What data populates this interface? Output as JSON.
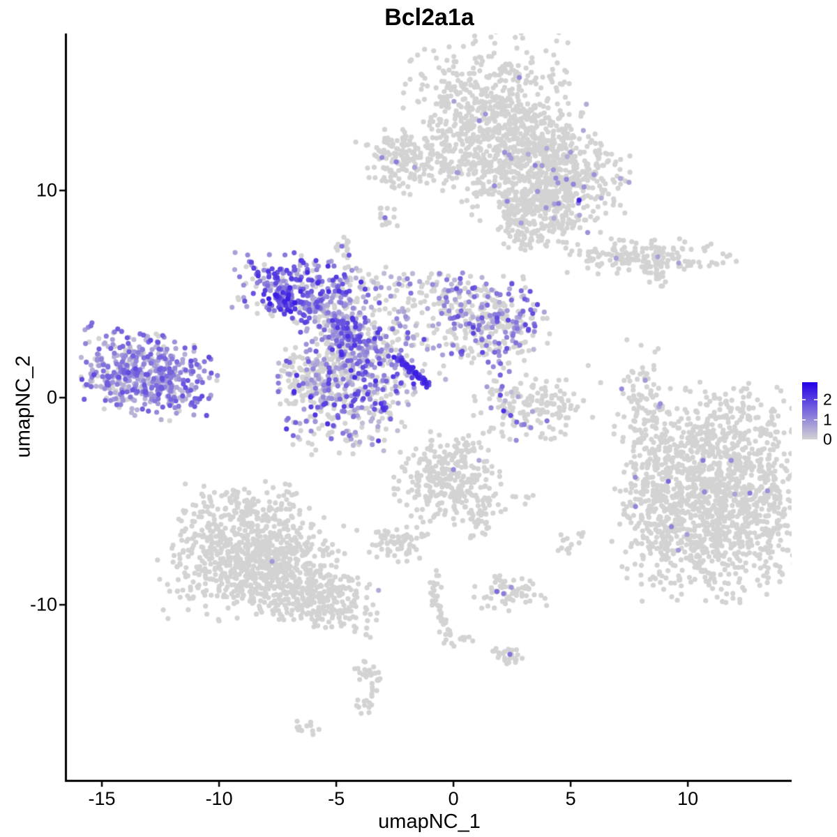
{
  "title": "Bcl2a1a",
  "chart_data": {
    "type": "scatter",
    "title": "Bcl2a1a",
    "xlabel": "umapNC_1",
    "ylabel": "umapNC_2",
    "xlim": [
      -16.49,
      14.43
    ],
    "ylim": [
      -18.45,
      17.58
    ],
    "x_ticks": [
      -15,
      -10,
      -5,
      0,
      5,
      10
    ],
    "y_ticks": [
      -10,
      0,
      10
    ],
    "grid": false,
    "legend_position": "right",
    "legend": {
      "ticks": [
        2,
        1,
        0
      ],
      "vmax": 2.9
    },
    "colors": {
      "low": "#D3D3D3",
      "high": "#2100E6",
      "axis": "#000000",
      "text": "#000000"
    },
    "point_radius": 3.6,
    "clusters": [
      {
        "name": "top-main-upper",
        "n": 620,
        "c": [
          1.5,
          13.6
        ],
        "s": [
          1.7,
          1.85
        ],
        "e": [
          0.006,
          0.6,
          1.1
        ]
      },
      {
        "name": "top-main-mid",
        "n": 380,
        "c": [
          3.0,
          11.4
        ],
        "s": [
          1.45,
          1.35
        ],
        "e": [
          0.015,
          0.5,
          1.0
        ]
      },
      {
        "name": "top-main-right",
        "n": 260,
        "c": [
          4.8,
          10.7
        ],
        "s": [
          1.25,
          1.05
        ],
        "e": [
          0.03,
          0.5,
          1.2
        ]
      },
      {
        "name": "top-main-lower",
        "n": 190,
        "c": [
          4.0,
          9.0
        ],
        "s": [
          1.1,
          0.9
        ],
        "e": [
          0.04,
          0.5,
          1.2
        ]
      },
      {
        "name": "top-tongue",
        "n": 85,
        "c": [
          2.9,
          8.5
        ],
        "s": [
          0.5,
          0.75
        ],
        "e": [
          0.01,
          0.5,
          1.0
        ]
      },
      {
        "name": "upper-left-island",
        "n": 135,
        "c": [
          -2.2,
          11.4
        ],
        "s": [
          1.0,
          0.72
        ],
        "e": [
          0.01,
          0.6,
          1.0
        ]
      },
      {
        "name": "upper-left-trail",
        "n": 38,
        "c": [
          -0.6,
          11.0
        ],
        "s": [
          0.85,
          0.32
        ],
        "e": [
          0.02,
          0.6,
          1.0
        ]
      },
      {
        "name": "tiny-blob-a",
        "n": 13,
        "c": [
          -2.9,
          8.72
        ],
        "s": [
          0.27,
          0.24
        ],
        "e": [
          0,
          0,
          0
        ]
      },
      {
        "name": "tiny-blob-b",
        "n": 13,
        "c": [
          -4.8,
          7.3
        ],
        "s": [
          0.3,
          0.26
        ],
        "e": [
          0,
          0,
          0
        ]
      },
      {
        "name": "bridge-topleft",
        "n": 230,
        "c": [
          -6.6,
          5.35
        ],
        "s": [
          1.3,
          0.8
        ],
        "e": [
          0.8,
          0.35,
          2.3
        ],
        "b": 1.2
      },
      {
        "name": "bridge-topleft-deep",
        "n": 55,
        "c": [
          -7.25,
          4.6
        ],
        "s": [
          0.5,
          0.42
        ],
        "e": [
          0.95,
          1.0,
          2.6
        ],
        "b": 0.9
      },
      {
        "name": "bridge-arm",
        "n": 140,
        "c": [
          -5.3,
          4.0
        ],
        "s": [
          0.72,
          0.78
        ],
        "e": [
          0.7,
          0.3,
          2.2
        ]
      },
      {
        "name": "bridge-mid",
        "n": 170,
        "c": [
          -4.4,
          2.6
        ],
        "s": [
          0.72,
          0.92
        ],
        "e": [
          0.6,
          0.25,
          2.2
        ]
      },
      {
        "name": "bridge-low",
        "n": 380,
        "c": [
          -4.5,
          0.1
        ],
        "s": [
          1.45,
          1.3
        ],
        "e": [
          0.55,
          0.25,
          2.3
        ]
      },
      {
        "name": "bridge-low-grey",
        "n": 125,
        "c": [
          -5.95,
          0.95
        ],
        "s": [
          0.75,
          0.7
        ],
        "e": [
          0.15,
          0.3,
          1.2
        ]
      },
      {
        "name": "bridge-scatter-right",
        "n": 130,
        "c": [
          -2.6,
          2.8
        ],
        "s": [
          1.25,
          1.05
        ],
        "e": [
          0.5,
          0.25,
          1.9
        ]
      },
      {
        "name": "bridge-upper-trail",
        "n": 85,
        "c": [
          -1.8,
          5.3
        ],
        "s": [
          1.45,
          0.5
        ],
        "e": [
          0.35,
          0.3,
          1.6
        ]
      },
      {
        "name": "bridge-spur",
        "n": 12,
        "c": [
          -4.3,
          5.9
        ],
        "s": [
          0.33,
          0.4
        ],
        "e": [
          0.3,
          0.4,
          1.2
        ]
      },
      {
        "name": "left-cluster",
        "n": 500,
        "c": [
          -13.15,
          1.1
        ],
        "s": [
          1.4,
          0.92
        ],
        "rot": -12,
        "e": [
          0.86,
          0.35,
          1.9
        ],
        "b": 1.5
      },
      {
        "name": "mid-right-cluster",
        "n": 320,
        "c": [
          1.6,
          3.8
        ],
        "s": [
          1.25,
          1.0
        ],
        "e": [
          0.38,
          0.35,
          2.0
        ]
      },
      {
        "name": "mid-right-drip",
        "n": 13,
        "c": [
          1.9,
          1.6
        ],
        "s": [
          0.38,
          0.95
        ],
        "e": [
          0.45,
          0.5,
          1.6
        ]
      },
      {
        "name": "smile-cluster",
        "n": 150,
        "c": [
          3.4,
          -0.45
        ],
        "s": [
          1.25,
          0.75
        ],
        "e": [
          0.1,
          0.3,
          1.0
        ]
      },
      {
        "name": "right-island",
        "n": 165,
        "c": [
          8.2,
          6.8
        ],
        "s": [
          1.8,
          0.4
        ],
        "e": [
          0,
          0,
          0
        ]
      },
      {
        "name": "right-island-diag",
        "n": 20,
        "c": [
          8.8,
          5.9
        ],
        "s": [
          0.42,
          0.27
        ],
        "rot": -40,
        "e": [
          0,
          0,
          0
        ]
      },
      {
        "name": "right-thin-cluster",
        "n": 72,
        "c": [
          8.1,
          -0.2
        ],
        "s": [
          0.4,
          1.45
        ],
        "e": [
          0.012,
          0.5,
          0.8
        ]
      },
      {
        "name": "bottom-right-main",
        "n": 1450,
        "c": [
          11.3,
          -4.6
        ],
        "s": [
          1.95,
          2.45
        ],
        "e": [
          0.003,
          0.5,
          1.1
        ]
      },
      {
        "name": "bottom-right-tail",
        "n": 165,
        "c": [
          8.6,
          -4.9
        ],
        "s": [
          0.85,
          2.1
        ],
        "e": [
          0.006,
          0.5,
          1.0
        ]
      },
      {
        "name": "bottom-left-top",
        "n": 400,
        "c": [
          -8.6,
          -6.4
        ],
        "s": [
          1.45,
          1.15
        ],
        "e": [
          0.001,
          0.4,
          0.8
        ]
      },
      {
        "name": "bottom-left-main",
        "n": 500,
        "c": [
          -8.4,
          -8.4
        ],
        "s": [
          1.95,
          1.1
        ],
        "e": [
          0.001,
          0.4,
          0.8
        ]
      },
      {
        "name": "bottom-left-tail",
        "n": 250,
        "c": [
          -5.9,
          -9.6
        ],
        "s": [
          1.35,
          0.7
        ],
        "rot": -20,
        "e": [
          0.001,
          0.4,
          0.8
        ]
      },
      {
        "name": "center-bottom",
        "n": 290,
        "c": [
          -0.2,
          -3.9
        ],
        "s": [
          1.15,
          1.05
        ],
        "e": [
          0.004,
          0.4,
          0.9
        ]
      },
      {
        "name": "center-bottom-tail",
        "n": 34,
        "c": [
          1.1,
          -5.8
        ],
        "s": [
          0.4,
          0.55
        ],
        "e": [
          0,
          0,
          0
        ]
      },
      {
        "name": "small-left-low",
        "n": 70,
        "c": [
          -2.4,
          -6.9
        ],
        "s": [
          0.62,
          0.48
        ],
        "e": [
          0,
          0,
          0
        ]
      },
      {
        "name": "pair-dots",
        "n": 6,
        "c": [
          3.0,
          -4.88
        ],
        "s": [
          0.22,
          0.13
        ],
        "e": [
          0,
          0,
          0
        ]
      },
      {
        "name": "tiny-right-low",
        "n": 15,
        "c": [
          5.05,
          -7.1
        ],
        "s": [
          0.38,
          0.27
        ],
        "e": [
          0,
          0,
          0
        ]
      },
      {
        "name": "lower-mid-cluster",
        "n": 60,
        "c": [
          2.5,
          -9.3
        ],
        "s": [
          0.75,
          0.45
        ],
        "e": [
          0,
          0,
          0
        ]
      },
      {
        "name": "strand-blob",
        "n": 13,
        "c": [
          -0.95,
          -9.2
        ],
        "s": [
          0.2,
          0.42
        ],
        "e": [
          0,
          0,
          0
        ]
      },
      {
        "name": "strand-dots",
        "n": 8,
        "c": [
          0.5,
          -11.7
        ],
        "s": [
          0.33,
          0.14
        ],
        "e": [
          0,
          0,
          0
        ]
      },
      {
        "name": "lower-small-cluster",
        "n": 26,
        "c": [
          2.3,
          -12.4
        ],
        "s": [
          0.38,
          0.23
        ],
        "e": [
          0,
          0,
          0
        ]
      },
      {
        "name": "bottom-center-a",
        "n": 24,
        "c": [
          -3.55,
          -13.4
        ],
        "s": [
          0.42,
          0.38
        ],
        "e": [
          0,
          0,
          0
        ]
      },
      {
        "name": "bottom-center-b",
        "n": 15,
        "c": [
          -3.7,
          -14.7
        ],
        "s": [
          0.33,
          0.28
        ],
        "e": [
          0,
          0,
          0
        ]
      },
      {
        "name": "bottom-dots",
        "n": 11,
        "c": [
          -6.35,
          -15.9
        ],
        "s": [
          0.33,
          0.18
        ],
        "e": [
          0,
          0,
          0
        ]
      }
    ],
    "lines": [
      {
        "name": "deep-streak",
        "p": [
          -2.35,
          1.92,
          -1.12,
          0.62
        ],
        "n": 55,
        "j": 0.07,
        "v": [
          1.7,
          2.5
        ]
      },
      {
        "name": "grey-strand",
        "p": [
          -0.85,
          -9.55,
          -0.12,
          -11.85
        ],
        "n": 30,
        "j": 0.12,
        "v": [
          0,
          0
        ]
      }
    ],
    "extra_points": [
      [
        5.36,
        9.53,
        2.4
      ],
      [
        6.0,
        10.77,
        0.9
      ],
      [
        3.78,
        11.2,
        0.8
      ],
      [
        4.26,
        11.0,
        0.8
      ],
      [
        4.37,
        10.6,
        1.0
      ],
      [
        4.82,
        10.54,
        1.1
      ],
      [
        5.0,
        11.85,
        0.8
      ],
      [
        5.57,
        10.17,
        0.9
      ],
      [
        5.33,
        9.39,
        1.1
      ],
      [
        4.46,
        10.37,
        0.9
      ],
      [
        1.1,
        13.37,
        1.0
      ],
      [
        -2.44,
        11.38,
        1.2
      ],
      [
        0.15,
        10.87,
        0.8
      ],
      [
        -2.92,
        8.69,
        1.3
      ],
      [
        -4.76,
        7.31,
        1.3
      ],
      [
        2.0,
        0.12,
        1.9
      ],
      [
        2.14,
        -0.64,
        2.2
      ],
      [
        2.44,
        -0.86,
        1.8
      ],
      [
        2.7,
        -1.18,
        1.5
      ],
      [
        3.02,
        -1.3,
        1.2
      ],
      [
        3.99,
        -1.12,
        1.3
      ],
      [
        3.3,
        -1.45,
        1.0
      ],
      [
        2.08,
        0.54,
        1.4
      ],
      [
        1.76,
        2.19,
        1.5
      ],
      [
        6.94,
        6.73,
        0.7
      ],
      [
        8.72,
        6.8,
        0.7
      ],
      [
        9.61,
        6.5,
        0.7
      ],
      [
        8.18,
        0.84,
        0.8
      ],
      [
        10.65,
        -3.03,
        1.2
      ],
      [
        11.85,
        -3.03,
        1.0
      ],
      [
        9.17,
        -4.04,
        1.5
      ],
      [
        10.71,
        -4.55,
        1.0
      ],
      [
        12.65,
        -4.61,
        1.2
      ],
      [
        9.3,
        -6.23,
        1.1
      ],
      [
        13.4,
        -4.5,
        0.9
      ],
      [
        -7.74,
        -7.91,
        0.8
      ],
      [
        0.0,
        -3.47,
        1.0
      ],
      [
        1.85,
        -9.36,
        1.4
      ],
      [
        2.14,
        -9.46,
        1.2
      ],
      [
        2.47,
        -9.16,
        0.9
      ],
      [
        2.41,
        -12.39,
        1.3
      ],
      [
        4.31,
        -1.95,
        0
      ],
      [
        5.75,
        1.55,
        0
      ],
      [
        6.28,
        0.72,
        0
      ]
    ]
  }
}
